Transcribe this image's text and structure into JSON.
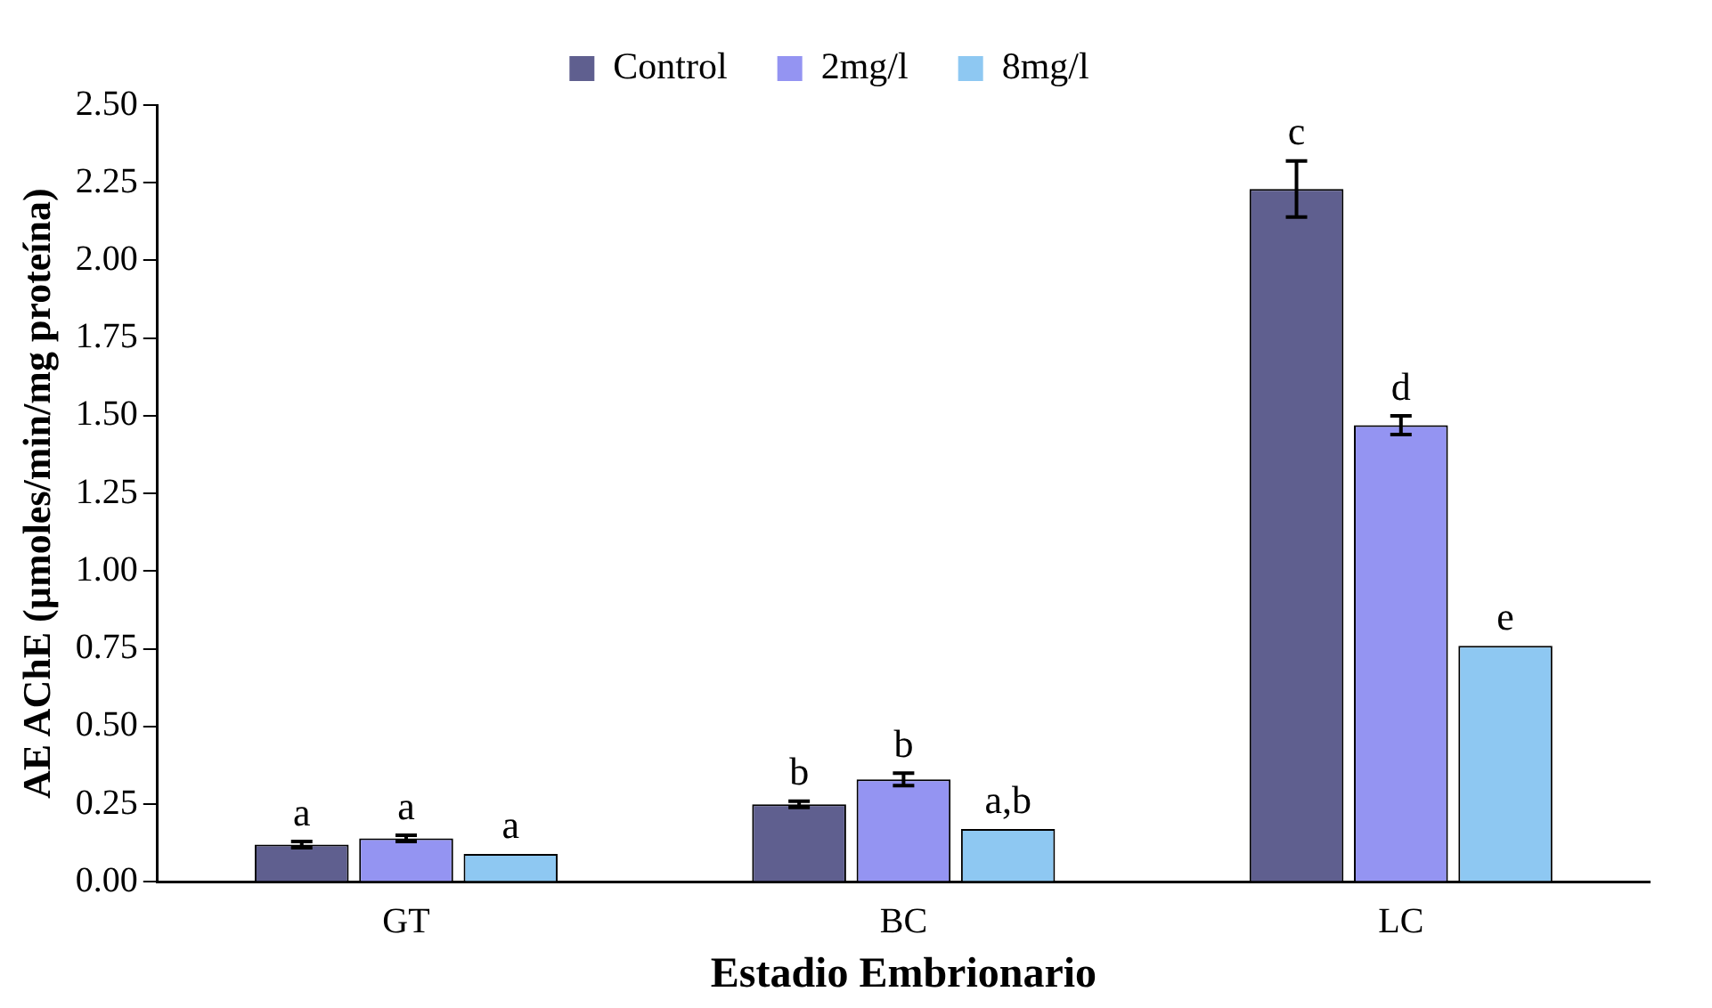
{
  "chart_data": {
    "type": "bar",
    "xlabel": "Estadio Embrionario",
    "ylabel": "AE AChE (µmoles/min/mg proteína)",
    "categories": [
      "GT",
      "BC",
      "LC"
    ],
    "series": [
      {
        "name": "Control",
        "color": "#5f5f8f",
        "values": [
          0.12,
          0.25,
          2.23
        ],
        "errors": [
          0.01,
          0.01,
          0.09
        ],
        "value_labels": [
          "a",
          "b",
          "c"
        ]
      },
      {
        "name": "2mg/l",
        "color": "#9494f2",
        "values": [
          0.14,
          0.33,
          1.47
        ],
        "errors": [
          0.01,
          0.02,
          0.03
        ],
        "value_labels": [
          "a",
          "b",
          "d"
        ]
      },
      {
        "name": "8mg/l",
        "color": "#8ec8f2",
        "values": [
          0.09,
          0.17,
          0.76
        ],
        "errors": [
          null,
          null,
          null
        ],
        "value_labels": [
          "a",
          "a,b",
          "e"
        ]
      }
    ],
    "ylim": [
      0,
      2.5
    ],
    "yticks": [
      {
        "value": 0,
        "label": "0.00"
      },
      {
        "value": 0.25,
        "label": "0.25"
      },
      {
        "value": 0.5,
        "label": "0.50"
      },
      {
        "value": 0.75,
        "label": "0.75"
      },
      {
        "value": 1,
        "label": "1.00"
      },
      {
        "value": 1.25,
        "label": "1.25"
      },
      {
        "value": 1.5,
        "label": "1.50"
      },
      {
        "value": 1.75,
        "label": "1.75"
      },
      {
        "value": 2,
        "label": "2.00"
      },
      {
        "value": 2.25,
        "label": "2.25"
      },
      {
        "value": 2.5,
        "label": "2.50"
      }
    ],
    "grid": false,
    "legend": "top"
  }
}
